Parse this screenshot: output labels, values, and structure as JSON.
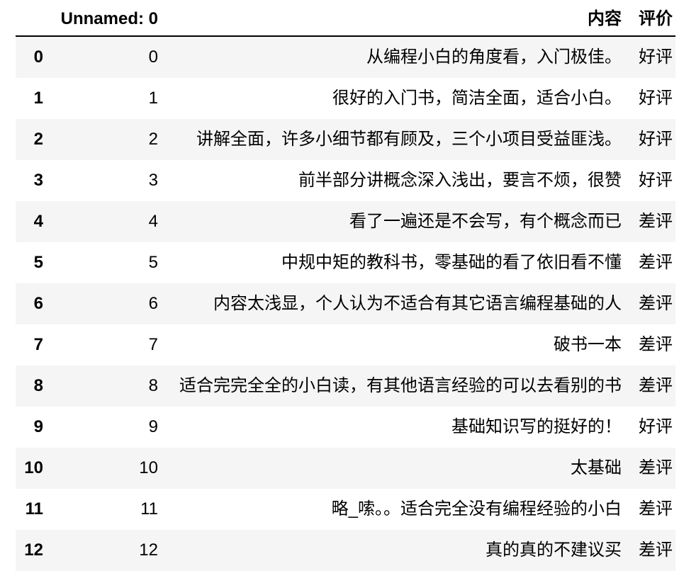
{
  "table": {
    "columns": [
      {
        "key": "index",
        "label": ""
      },
      {
        "key": "unnamed",
        "label": "Unnamed: 0"
      },
      {
        "key": "content",
        "label": "内容"
      },
      {
        "key": "rating",
        "label": "评价"
      }
    ],
    "rows": [
      {
        "index": "0",
        "unnamed": "0",
        "content": "从编程小白的角度看，入门极佳。",
        "rating": "好评"
      },
      {
        "index": "1",
        "unnamed": "1",
        "content": "很好的入门书，简洁全面，适合小白。",
        "rating": "好评"
      },
      {
        "index": "2",
        "unnamed": "2",
        "content": "讲解全面，许多小细节都有顾及，三个小项目受益匪浅。",
        "rating": "好评"
      },
      {
        "index": "3",
        "unnamed": "3",
        "content": "前半部分讲概念深入浅出，要言不烦，很赞",
        "rating": "好评"
      },
      {
        "index": "4",
        "unnamed": "4",
        "content": "看了一遍还是不会写，有个概念而已",
        "rating": "差评"
      },
      {
        "index": "5",
        "unnamed": "5",
        "content": "中规中矩的教科书，零基础的看了依旧看不懂",
        "rating": "差评"
      },
      {
        "index": "6",
        "unnamed": "6",
        "content": "内容太浅显，个人认为不适合有其它语言编程基础的人",
        "rating": "差评"
      },
      {
        "index": "7",
        "unnamed": "7",
        "content": "破书一本",
        "rating": "差评"
      },
      {
        "index": "8",
        "unnamed": "8",
        "content": "适合完完全全的小白读，有其他语言经验的可以去看别的书",
        "rating": "差评"
      },
      {
        "index": "9",
        "unnamed": "9",
        "content": "基础知识写的挺好的！",
        "rating": "好评"
      },
      {
        "index": "10",
        "unnamed": "10",
        "content": "太基础",
        "rating": "差评"
      },
      {
        "index": "11",
        "unnamed": "11",
        "content": "略_嗦。。适合完全没有编程经验的小白",
        "rating": "差评"
      },
      {
        "index": "12",
        "unnamed": "12",
        "content": "真的真的不建议买",
        "rating": "差评"
      }
    ]
  },
  "colors": {
    "stripe": "#f5f5f5",
    "header_rule": "#000000",
    "text": "#000000",
    "background": "#ffffff"
  }
}
